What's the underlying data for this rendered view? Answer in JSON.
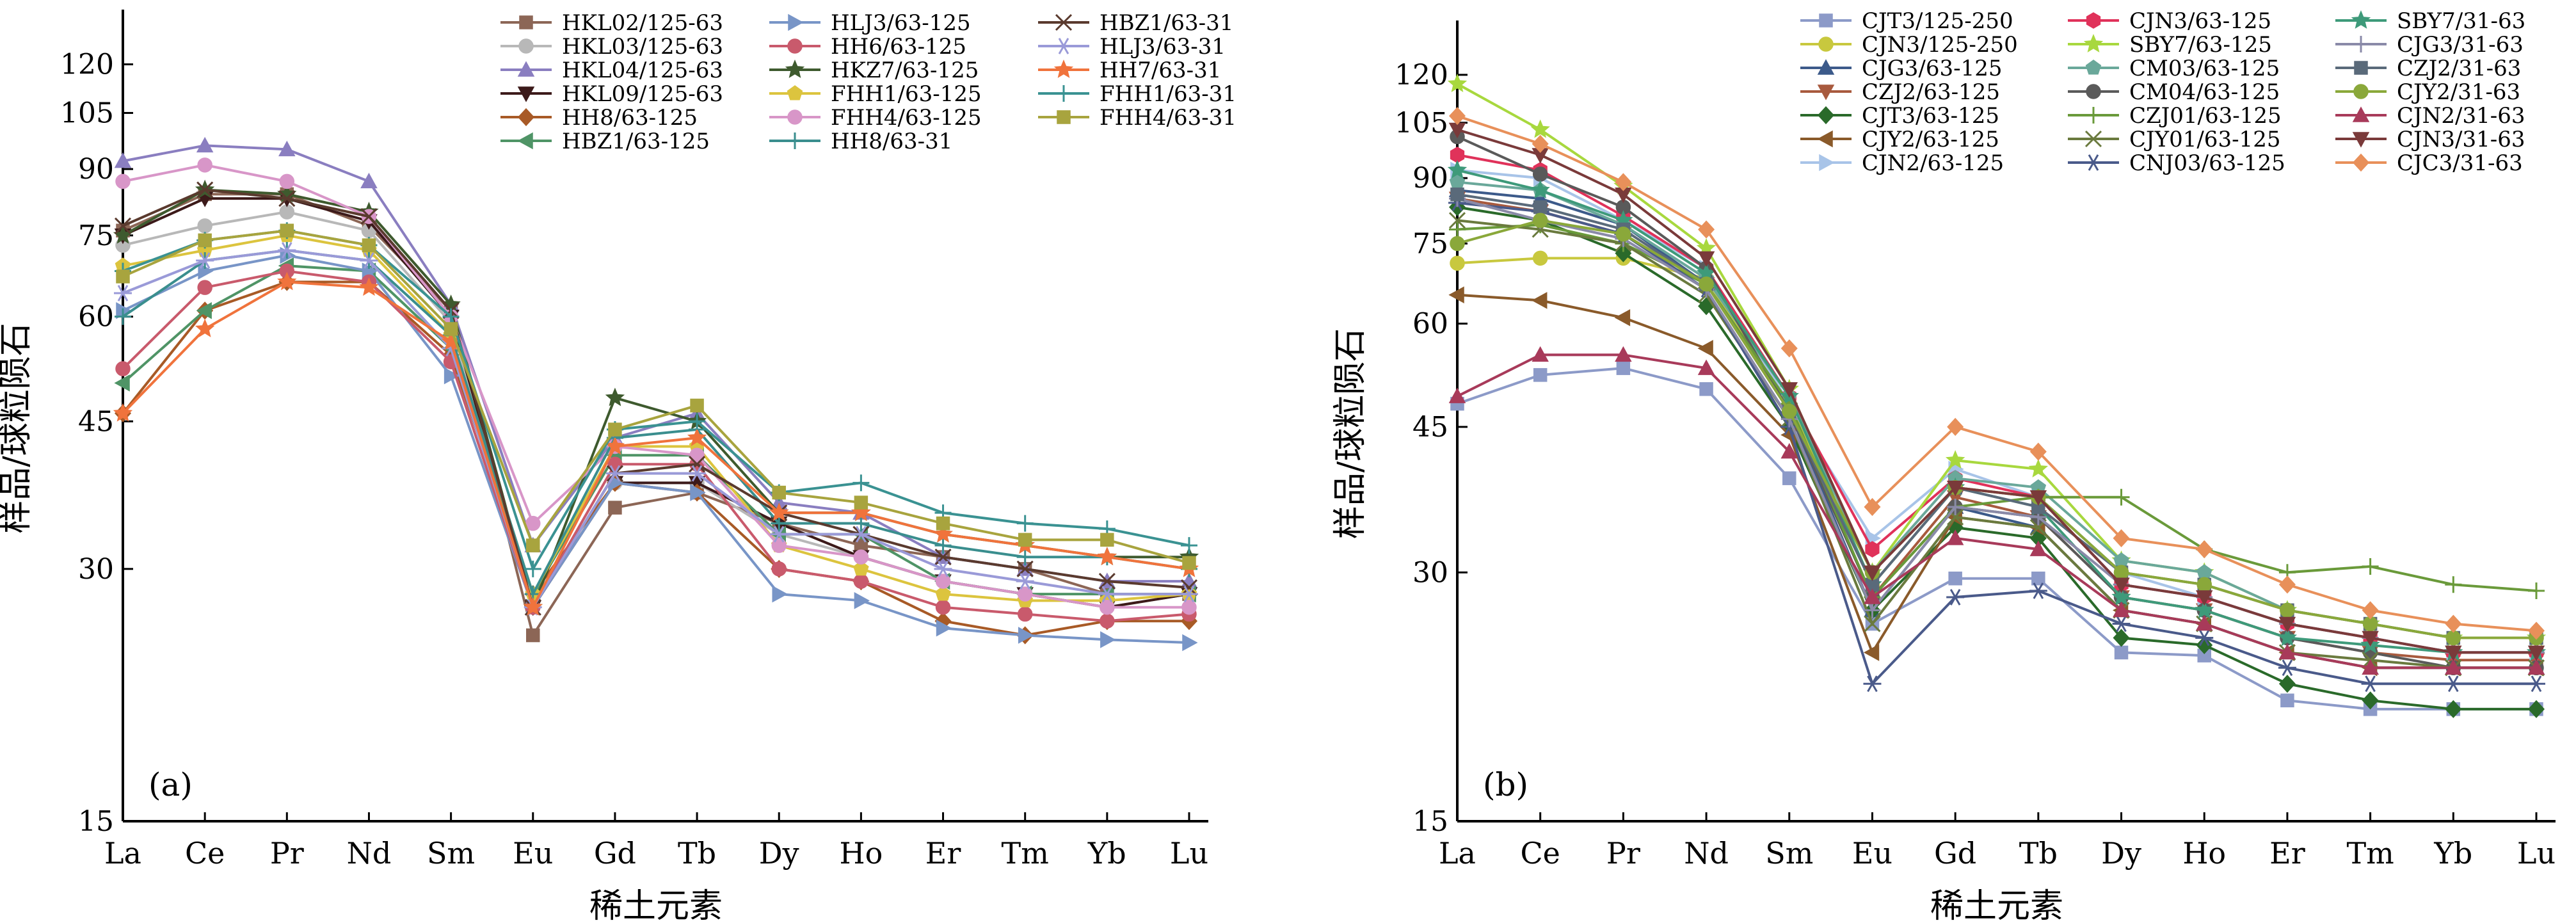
{
  "chart_data": [
    {
      "type": "line",
      "panel_label": "(a)",
      "xlabel": "稀土元素",
      "ylabel": "样品/球粒陨石",
      "yscale": "log",
      "ylim": [
        15,
        130
      ],
      "yticks": [
        15,
        30,
        45,
        60,
        75,
        90,
        105,
        120
      ],
      "categories": [
        "La",
        "Ce",
        "Pr",
        "Nd",
        "Sm",
        "Eu",
        "Gd",
        "Tb",
        "Dy",
        "Ho",
        "Er",
        "Tm",
        "Yb",
        "Lu"
      ],
      "legend_position": "top-right",
      "legend_columns": 3,
      "series": [
        {
          "name": "HKL02/125-63",
          "color": "#8c6656",
          "marker": "square",
          "values": [
            76,
            84,
            84,
            77,
            61,
            25,
            35.5,
            37,
            34,
            32,
            31,
            30,
            28,
            28
          ]
        },
        {
          "name": "HKL03/125-63",
          "color": "#b8b8b8",
          "marker": "circle",
          "values": [
            73,
            77,
            80,
            76,
            59,
            27,
            38,
            38,
            33,
            31,
            29,
            28,
            27,
            28
          ]
        },
        {
          "name": "HKL04/125-63",
          "color": "#8a7ec0",
          "marker": "triangle-up",
          "values": [
            92,
            96,
            95,
            87,
            62,
            32,
            43,
            46,
            36,
            35,
            31,
            30,
            29,
            29
          ]
        },
        {
          "name": "HKL09/125-63",
          "color": "#3c1a1a",
          "marker": "triangle-down",
          "values": [
            75,
            83,
            83,
            78,
            60,
            27,
            38,
            38,
            34,
            31,
            29,
            28,
            27,
            28
          ]
        },
        {
          "name": "HH8/63-125",
          "color": "#a85a26",
          "marker": "diamond",
          "values": [
            46,
            61,
            66,
            66,
            54,
            28,
            38,
            37,
            30,
            29,
            26,
            25,
            26,
            26
          ]
        },
        {
          "name": "HBZ1/63-125",
          "color": "#4f9466",
          "marker": "triangle-left",
          "values": [
            50,
            61,
            69,
            68,
            55,
            28,
            41,
            41,
            33,
            33,
            29,
            28,
            28,
            28
          ]
        },
        {
          "name": "HLJ3/63-125",
          "color": "#7895c7",
          "marker": "triangle-right",
          "values": [
            61,
            68,
            71,
            68,
            51,
            27,
            38,
            37,
            28,
            27.5,
            25.5,
            25,
            24.7,
            24.5
          ]
        },
        {
          "name": "HH6/63-125",
          "color": "#c95a6c",
          "marker": "circle",
          "values": [
            52,
            65,
            68,
            66,
            53,
            27,
            40,
            40,
            30,
            29,
            27,
            26.5,
            26,
            26.5
          ]
        },
        {
          "name": "HKZ7/63-125",
          "color": "#3e5a2e",
          "marker": "star",
          "values": [
            75,
            85,
            84,
            80,
            62,
            27,
            48,
            45,
            35,
            35,
            33,
            32,
            31,
            31
          ]
        },
        {
          "name": "FHH1/63-125",
          "color": "#dcc43e",
          "marker": "pentagon",
          "values": [
            69,
            72,
            75,
            72,
            57,
            28,
            42,
            42,
            32,
            30,
            28,
            27.5,
            27.5,
            28
          ]
        },
        {
          "name": "FHH4/63-125",
          "color": "#d896c8",
          "marker": "circle",
          "values": [
            87,
            91,
            87,
            79,
            60,
            34,
            42,
            41,
            32,
            31,
            29,
            28,
            27,
            27
          ]
        },
        {
          "name": "HH8/63-31",
          "color": "#3a8e8e",
          "marker": "plus",
          "values": [
            60,
            70,
            72,
            70,
            57,
            28,
            43,
            44,
            34,
            34,
            32,
            31,
            31,
            30
          ]
        },
        {
          "name": "HBZ1/63-31",
          "color": "#5a3a2e",
          "marker": "x",
          "values": [
            77,
            85,
            83,
            79,
            61,
            27,
            39,
            40,
            35,
            33,
            31,
            30,
            29,
            28.5
          ]
        },
        {
          "name": "HLJ3/63-31",
          "color": "#9a9ad8",
          "marker": "asterisk",
          "values": [
            64,
            70,
            72,
            70,
            55,
            27,
            39,
            39,
            33,
            33,
            30,
            29,
            28,
            28
          ]
        },
        {
          "name": "HH7/63-31",
          "color": "#f0733c",
          "marker": "star",
          "values": [
            46,
            58,
            66,
            65,
            56,
            27,
            42,
            43,
            35,
            35,
            33,
            32,
            31,
            30
          ]
        },
        {
          "name": "FHH1/63-31",
          "color": "#3a9292",
          "marker": "plus",
          "values": [
            68,
            74,
            76,
            73,
            60,
            30,
            44,
            45,
            37,
            38,
            35,
            34,
            33.5,
            32
          ]
        },
        {
          "name": "FHH4/63-31",
          "color": "#a8a43e",
          "marker": "square",
          "values": [
            67,
            74,
            76,
            73,
            58,
            32,
            44,
            47,
            37,
            36,
            34,
            32.5,
            32.5,
            30.5
          ]
        }
      ]
    },
    {
      "type": "line",
      "panel_label": "(b)",
      "xlabel": "稀土元素",
      "ylabel": "样品/球粒陨石",
      "yscale": "log",
      "ylim": [
        15,
        130
      ],
      "yticks": [
        15,
        30,
        45,
        60,
        75,
        90,
        105,
        120
      ],
      "categories": [
        "La",
        "Ce",
        "Pr",
        "Nd",
        "Sm",
        "Eu",
        "Gd",
        "Tb",
        "Dy",
        "Ho",
        "Er",
        "Tm",
        "Yb",
        "Lu"
      ],
      "legend_position": "top-right",
      "legend_columns": 3,
      "series": [
        {
          "name": "CJT3/125-250",
          "color": "#8c9ac8",
          "marker": "square",
          "values": [
            48,
            52,
            53,
            50,
            39,
            26,
            29.5,
            29.5,
            24,
            23.8,
            21,
            20.5,
            20.5,
            20.5
          ]
        },
        {
          "name": "CJN3/125-250",
          "color": "#c8c83e",
          "marker": "circle",
          "values": [
            71,
            72,
            72,
            68,
            48,
            29,
            38,
            37,
            30,
            29,
            27,
            26,
            25,
            25
          ]
        },
        {
          "name": "CJG3/63-125",
          "color": "#3c5a8a",
          "marker": "triangle-up",
          "values": [
            87,
            85,
            79,
            67,
            47,
            27,
            36,
            34,
            27,
            26,
            24,
            23,
            23,
            23
          ]
        },
        {
          "name": "CZJ2/63-125",
          "color": "#a85a3e",
          "marker": "triangle-down",
          "values": [
            85,
            82,
            77,
            67,
            47,
            28,
            37,
            35,
            28,
            27,
            25,
            24,
            23.5,
            23.5
          ]
        },
        {
          "name": "CJT3/63-125",
          "color": "#2a6a2a",
          "marker": "diamond",
          "values": [
            83,
            80,
            73,
            63,
            45,
            27,
            34,
            33,
            25,
            24.5,
            22,
            21,
            20.5,
            20.5
          ]
        },
        {
          "name": "CJY2/63-125",
          "color": "#8a5a2a",
          "marker": "triangle-left",
          "values": [
            65,
            64,
            61,
            56,
            44,
            24,
            35,
            34,
            27,
            26,
            24,
            23,
            23,
            23
          ]
        },
        {
          "name": "CJN2/63-125",
          "color": "#a8c4e8",
          "marker": "triangle-right",
          "values": [
            92,
            90,
            80,
            70,
            48,
            33,
            40,
            37,
            30,
            28,
            26,
            25,
            24,
            24
          ]
        },
        {
          "name": "CJN3/63-125",
          "color": "#e0325a",
          "marker": "hexagon",
          "values": [
            96,
            92,
            81,
            70,
            49,
            32,
            39,
            37,
            29,
            28,
            26,
            25,
            24,
            24
          ]
        },
        {
          "name": "SBY7/63-125",
          "color": "#a8d83e",
          "marker": "star",
          "values": [
            117,
            103,
            88,
            74,
            50,
            30,
            41,
            40,
            31,
            30,
            27,
            26,
            25,
            25
          ]
        },
        {
          "name": "CM03/63-125",
          "color": "#6aa89a",
          "marker": "pentagon",
          "values": [
            89,
            87,
            79,
            68,
            49,
            30,
            39,
            38,
            31,
            30,
            27,
            26,
            25,
            25
          ]
        },
        {
          "name": "CM04/63-125",
          "color": "#5a5a5a",
          "marker": "circle",
          "values": [
            101,
            91,
            83,
            70,
            47,
            28,
            36,
            35,
            28,
            27,
            25,
            24,
            23,
            23
          ]
        },
        {
          "name": "CZJ01/63-125",
          "color": "#6a9a3a",
          "marker": "plus",
          "values": [
            78,
            79,
            75,
            67,
            48,
            28,
            36,
            37,
            37,
            32,
            30,
            30.5,
            29,
            28.5
          ]
        },
        {
          "name": "CJY01/63-125",
          "color": "#6a7a3e",
          "marker": "x",
          "values": [
            80,
            78,
            75,
            65,
            46,
            26,
            35,
            34,
            27,
            26,
            24,
            23.5,
            23,
            23
          ]
        },
        {
          "name": "CNJ03/63-125",
          "color": "#4a5a8a",
          "marker": "asterisk",
          "values": [
            84,
            82,
            77,
            66,
            45,
            22,
            28,
            28.5,
            26,
            25,
            23,
            22,
            22,
            22
          ]
        },
        {
          "name": "SBY7/31-63",
          "color": "#3e9a7a",
          "marker": "star",
          "values": [
            92,
            87,
            80,
            69,
            49,
            29,
            38,
            36,
            28,
            27,
            25,
            24.5,
            24,
            24
          ]
        },
        {
          "name": "CJG3/31-63",
          "color": "#8a8aa8",
          "marker": "plus",
          "values": [
            85,
            80,
            76,
            66,
            46,
            27,
            36,
            35,
            29,
            28,
            26,
            25,
            24,
            24
          ]
        },
        {
          "name": "CZJ2/31-63",
          "color": "#5a6a7a",
          "marker": "square",
          "values": [
            86,
            83,
            78,
            67,
            47,
            29,
            38,
            36,
            30,
            29,
            27,
            26,
            25,
            25
          ]
        },
        {
          "name": "CJY2/31-63",
          "color": "#8aa83a",
          "marker": "circle",
          "values": [
            75,
            80,
            77,
            67,
            47,
            30,
            38,
            37,
            30,
            29,
            27,
            26,
            25,
            25
          ]
        },
        {
          "name": "CJN2/31-63",
          "color": "#a83a5a",
          "marker": "triangle-up",
          "values": [
            49,
            55,
            55,
            53,
            42,
            28,
            33,
            32,
            27,
            26,
            24,
            23,
            23,
            23
          ]
        },
        {
          "name": "CJN3/31-63",
          "color": "#7a3a3a",
          "marker": "triangle-down",
          "values": [
            103,
            96,
            86,
            72,
            50,
            30,
            38,
            37,
            29,
            28,
            26,
            25,
            24,
            24
          ]
        },
        {
          "name": "CJC3/31-63",
          "color": "#e8905a",
          "marker": "diamond",
          "values": [
            107,
            99,
            89,
            78,
            56,
            36,
            45,
            42,
            33,
            32,
            29,
            27,
            26,
            25.5
          ]
        }
      ]
    }
  ]
}
